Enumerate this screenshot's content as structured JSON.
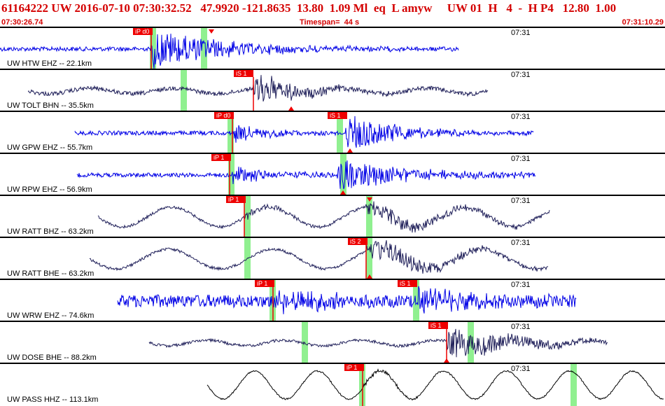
{
  "header": {
    "title": "61164222 UW 2016-07-10 07:30:32.52   47.9920 -121.8635  13.80  1.09 Ml  eq  L amyw     UW 01  H   4  -  H P4   12.80  1.00",
    "start_time": "07:30:26.74",
    "timespan": "Timespan=  44 s",
    "end_time": "07:31:10.29"
  },
  "colors": {
    "header": "#d40000",
    "blue": "#0000e6",
    "navy": "#20205a",
    "black": "#000000",
    "pick": "#ee0000",
    "window": "#90f090"
  },
  "time_tick": "07:31",
  "panels": [
    {
      "label": "UW HTW EHZ -- 22.1km",
      "color": "blue",
      "style": "noise",
      "start": 0,
      "end": 655,
      "picks": [
        {
          "text": "iP d0",
          "x": 216
        }
      ],
      "windows": [
        214,
        287
      ],
      "arrival": 216,
      "marker": 302,
      "marker_up": false,
      "events": [
        {
          "at": 216,
          "amp": 28,
          "decay": 110
        }
      ],
      "noise": 3
    },
    {
      "label": "UW TOLT BHN -- 35.5km",
      "color": "navy",
      "style": "mixed",
      "start": 40,
      "end": 697,
      "picks": [
        {
          "text": "iS 1",
          "x": 360
        }
      ],
      "windows": [
        258
      ],
      "arrival": 362,
      "marker": 416,
      "marker_up": true,
      "events": [
        {
          "at": 362,
          "amp": 26,
          "decay": 60
        }
      ],
      "noise": 3,
      "wave_amp": 4,
      "wave_period": 120
    },
    {
      "label": "UW GPW EHZ -- 55.7km",
      "color": "blue",
      "style": "noise",
      "start": 107,
      "end": 762,
      "picks": [
        {
          "text": "iP d0",
          "x": 332
        },
        {
          "text": "iS 1",
          "x": 494
        }
      ],
      "windows": [
        325,
        481
      ],
      "arrival": 332,
      "marker": 500,
      "marker_up": true,
      "events": [
        {
          "at": 332,
          "amp": 14,
          "decay": 50
        },
        {
          "at": 494,
          "amp": 28,
          "decay": 70
        }
      ],
      "noise": 3
    },
    {
      "label": "UW RPW EHZ -- 56.9km",
      "color": "blue",
      "style": "noise",
      "start": 110,
      "end": 765,
      "picks": [
        {
          "text": "iP 1",
          "x": 328
        }
      ],
      "windows": [
        326,
        486
      ],
      "arrival": 328,
      "marker": 490,
      "marker_up": true,
      "events": [
        {
          "at": 328,
          "amp": 14,
          "decay": 60
        },
        {
          "at": 482,
          "amp": 22,
          "decay": 110
        }
      ],
      "noise": 3
    },
    {
      "label": "UW RATT BHZ -- 63.2km",
      "color": "navy",
      "style": "wave",
      "start": 140,
      "end": 785,
      "picks": [
        {
          "text": "iP 1",
          "x": 349
        }
      ],
      "windows": [
        349,
        523
      ],
      "arrival": 349,
      "marker": 528,
      "marker_up": false,
      "events": [
        {
          "at": 349,
          "amp": 6,
          "decay": 50
        },
        {
          "at": 523,
          "amp": 14,
          "decay": 120
        }
      ],
      "noise": 2,
      "wave_amp": 14,
      "wave_period": 140
    },
    {
      "label": "UW RATT BHE -- 63.2km",
      "color": "navy",
      "style": "wave",
      "start": 128,
      "end": 783,
      "picks": [
        {
          "text": "iS 2",
          "x": 523
        }
      ],
      "windows": [
        349,
        523
      ],
      "arrival": 523,
      "marker": 528,
      "marker_up": true,
      "events": [
        {
          "at": 523,
          "amp": 18,
          "decay": 110
        }
      ],
      "noise": 2,
      "wave_amp": 14,
      "wave_period": 150
    },
    {
      "label": "UW WRW EHZ -- 74.6km",
      "color": "blue",
      "style": "noise",
      "start": 168,
      "end": 823,
      "picks": [
        {
          "text": "iP 1",
          "x": 390
        },
        {
          "text": "iS 1",
          "x": 594
        }
      ],
      "windows": [
        385,
        590
      ],
      "arrival": 390,
      "marker": 0,
      "marker_up": false,
      "events": [
        {
          "at": 390,
          "amp": 22,
          "decay": 60
        },
        {
          "at": 594,
          "amp": 22,
          "decay": 70
        }
      ],
      "noise": 9
    },
    {
      "label": "UW DOSE BHE -- 88.2km",
      "color": "navy",
      "style": "mixed",
      "start": 213,
      "end": 868,
      "picks": [
        {
          "text": "iS 1",
          "x": 638
        }
      ],
      "windows": [
        431,
        668
      ],
      "arrival": 638,
      "marker": 638,
      "marker_up": true,
      "events": [
        {
          "at": 638,
          "amp": 24,
          "decay": 100
        }
      ],
      "noise": 2,
      "wave_amp": 4,
      "wave_period": 110
    },
    {
      "label": "UW PASS HHZ -- 113.1km",
      "color": "black",
      "style": "wave",
      "start": 296,
      "end": 948,
      "picks": [
        {
          "text": "iP 1",
          "x": 518
        }
      ],
      "windows": [
        513,
        815
      ],
      "arrival": 518,
      "marker": 0,
      "marker_up": false,
      "events": [
        {
          "at": 518,
          "amp": 4,
          "decay": 60
        }
      ],
      "noise": 1,
      "wave_amp": 20,
      "wave_period": 90
    }
  ]
}
